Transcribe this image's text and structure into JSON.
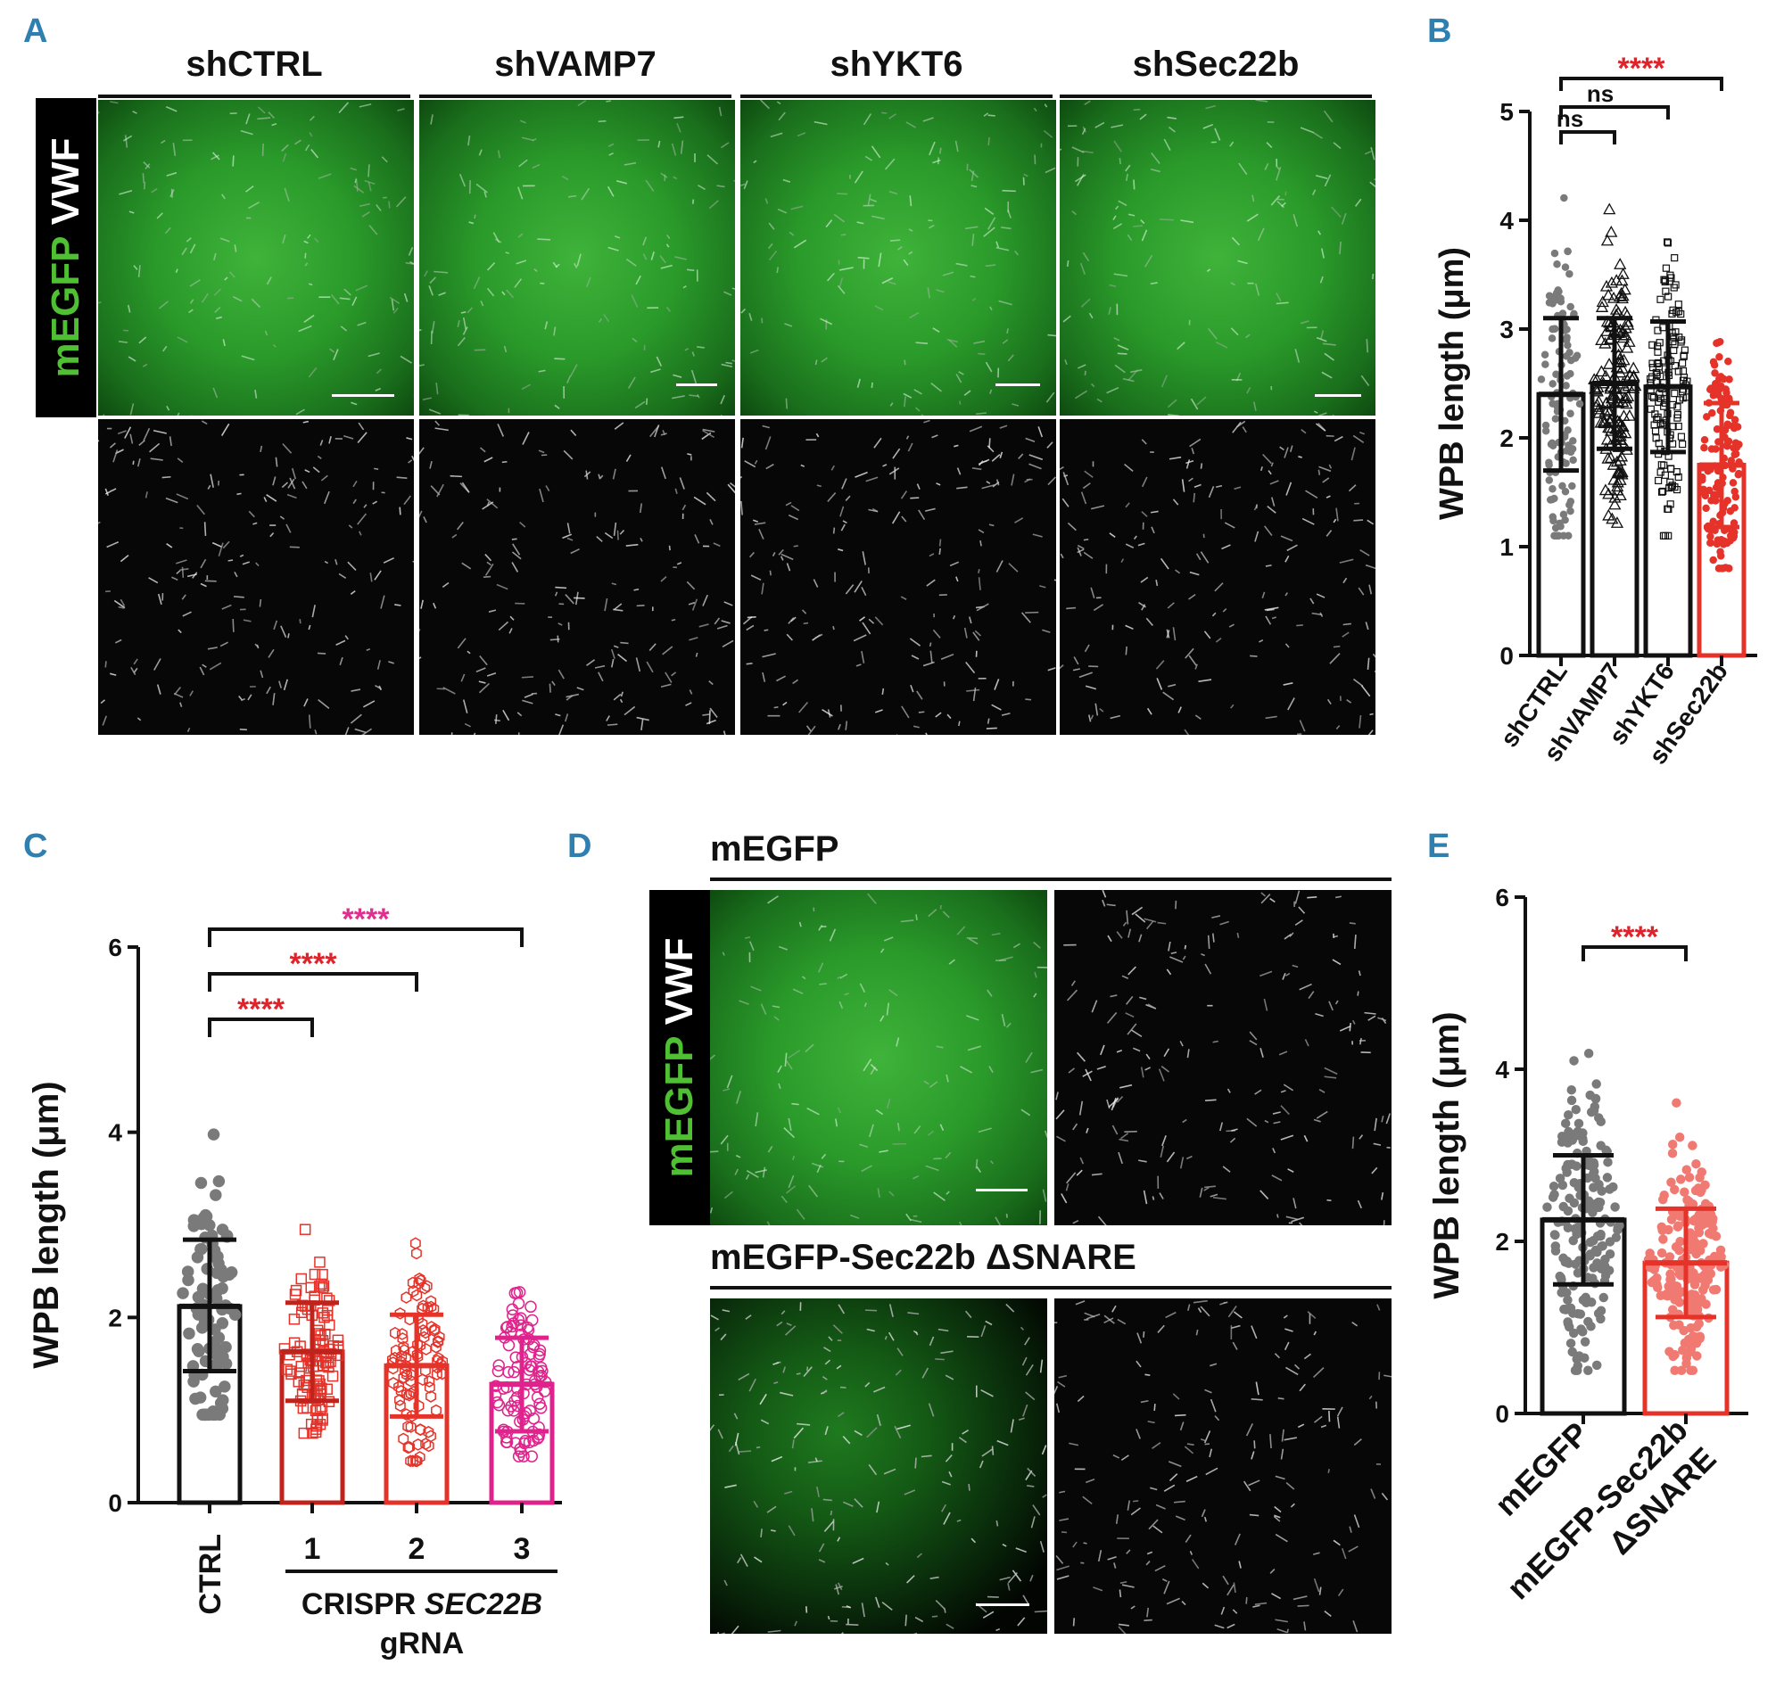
{
  "panel_labels": {
    "A": "A",
    "B": "B",
    "C": "C",
    "D": "D",
    "E": "E"
  },
  "panelA": {
    "columns": [
      "shCTRL",
      "shVAMP7",
      "shYKT6",
      "shSec22b"
    ],
    "row_label_green": "mEGFP",
    "row_label_white": "VWF"
  },
  "panelD": {
    "row1_title": "mEGFP",
    "row2_title": "mEGFP-Sec22b ΔSNARE",
    "row_label_green": "mEGFP",
    "row_label_white": "VWF"
  },
  "colors": {
    "black": "#111111",
    "red": "#e5332a",
    "dark_red": "#c0231c",
    "magenta": "#e0238c",
    "sig_red": "#e0232a",
    "sig_magenta": "#e02f8f",
    "gray_point": "#7a7a7a",
    "label_blue": "#2f7fb1"
  },
  "chart_data": [
    {
      "id": "B",
      "type": "bar",
      "categories": [
        "shCTRL",
        "shVAMP7",
        "shYKT6",
        "shSec22b"
      ],
      "values": [
        2.4,
        2.5,
        2.47,
        1.75
      ],
      "error_low": [
        1.7,
        1.9,
        1.87,
        1.18
      ],
      "error_high": [
        3.1,
        3.1,
        3.07,
        2.32
      ],
      "ylabel": "WPB length (μm)",
      "ylim": [
        0,
        5
      ],
      "yticks": [
        "0",
        "1",
        "2",
        "3",
        "4",
        "5"
      ],
      "significance": [
        {
          "from": 0,
          "to": 1,
          "label": "ns",
          "color": "black"
        },
        {
          "from": 0,
          "to": 2,
          "label": "ns",
          "color": "black"
        },
        {
          "from": 0,
          "to": 3,
          "label": "****",
          "color": "red"
        }
      ]
    },
    {
      "id": "C",
      "type": "bar",
      "categories": [
        "CTRL",
        "1",
        "2",
        "3"
      ],
      "group_label": [
        "CRISPR ",
        "SEC22B",
        "gRNA"
      ],
      "values": [
        2.12,
        1.63,
        1.48,
        1.28
      ],
      "error_low": [
        1.42,
        1.1,
        0.93,
        0.77
      ],
      "error_high": [
        2.84,
        2.16,
        2.03,
        1.78
      ],
      "ylabel": "WPB length (μm)",
      "ylim": [
        0,
        6
      ],
      "yticks": [
        "0",
        "2",
        "4",
        "6"
      ],
      "significance": [
        {
          "from": 0,
          "to": 1,
          "label": "****",
          "color": "red"
        },
        {
          "from": 0,
          "to": 2,
          "label": "****",
          "color": "red"
        },
        {
          "from": 0,
          "to": 3,
          "label": "****",
          "color": "magenta"
        }
      ]
    },
    {
      "id": "E",
      "type": "bar",
      "categories": [
        "mEGFP",
        "mEGFP-Sec22b ΔSNARE"
      ],
      "values": [
        2.25,
        1.75
      ],
      "error_low": [
        1.5,
        1.12
      ],
      "error_high": [
        3.0,
        2.38
      ],
      "ylabel": "WPB length (μm)",
      "ylim": [
        0,
        6
      ],
      "yticks": [
        "0",
        "2",
        "4",
        "6"
      ],
      "significance": [
        {
          "from": 0,
          "to": 1,
          "label": "****",
          "color": "red"
        }
      ]
    }
  ]
}
